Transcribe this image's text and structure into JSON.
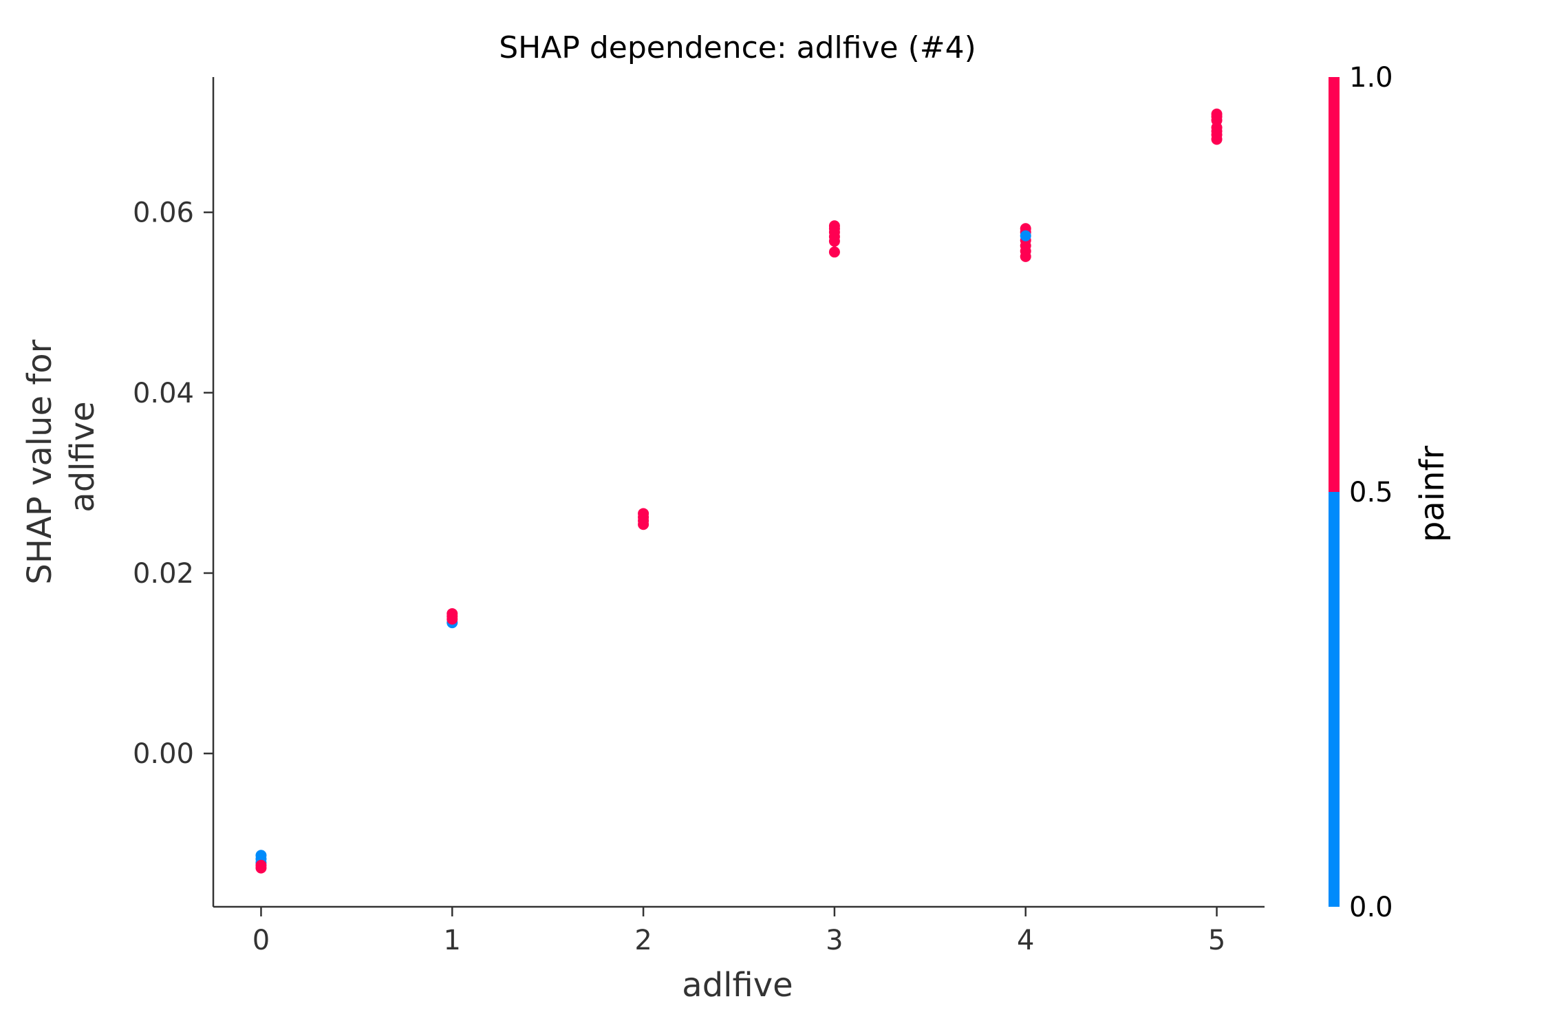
{
  "chart_data": {
    "type": "scatter",
    "title": "SHAP dependence: adlfive (#4)",
    "xlabel": "adlfive",
    "ylabel_lines": [
      "SHAP value for",
      "adlfive"
    ],
    "xlim": [
      -0.25,
      5.25
    ],
    "ylim": [
      -0.017,
      0.075
    ],
    "xticks": [
      0,
      1,
      2,
      3,
      4,
      5
    ],
    "xtick_labels": [
      "0",
      "1",
      "2",
      "3",
      "4",
      "5"
    ],
    "yticks": [
      0.0,
      0.02,
      0.04,
      0.06
    ],
    "ytick_labels": [
      "0.00",
      "0.02",
      "0.04",
      "0.06"
    ],
    "grid": false,
    "points": [
      {
        "x": 0,
        "y": -0.0113,
        "c": 0
      },
      {
        "x": 0,
        "y": -0.0117,
        "c": 0
      },
      {
        "x": 0,
        "y": -0.0121,
        "c": 0
      },
      {
        "x": 0,
        "y": -0.0124,
        "c": 1
      },
      {
        "x": 0,
        "y": -0.0127,
        "c": 1
      },
      {
        "x": 1,
        "y": 0.0145,
        "c": 0
      },
      {
        "x": 1,
        "y": 0.0149,
        "c": 1
      },
      {
        "x": 1,
        "y": 0.0152,
        "c": 1
      },
      {
        "x": 1,
        "y": 0.0155,
        "c": 1
      },
      {
        "x": 2,
        "y": 0.0254,
        "c": 1
      },
      {
        "x": 2,
        "y": 0.0258,
        "c": 1
      },
      {
        "x": 2,
        "y": 0.0262,
        "c": 1
      },
      {
        "x": 2,
        "y": 0.0266,
        "c": 1
      },
      {
        "x": 3,
        "y": 0.0556,
        "c": 1
      },
      {
        "x": 3,
        "y": 0.0568,
        "c": 1
      },
      {
        "x": 3,
        "y": 0.0573,
        "c": 1
      },
      {
        "x": 3,
        "y": 0.0578,
        "c": 1
      },
      {
        "x": 3,
        "y": 0.0582,
        "c": 1
      },
      {
        "x": 3,
        "y": 0.0585,
        "c": 1
      },
      {
        "x": 4,
        "y": 0.0551,
        "c": 1
      },
      {
        "x": 4,
        "y": 0.0557,
        "c": 1
      },
      {
        "x": 4,
        "y": 0.0563,
        "c": 1
      },
      {
        "x": 4,
        "y": 0.0569,
        "c": 1
      },
      {
        "x": 4,
        "y": 0.0578,
        "c": 1
      },
      {
        "x": 4,
        "y": 0.0582,
        "c": 1
      },
      {
        "x": 4,
        "y": 0.0574,
        "c": 0
      },
      {
        "x": 5,
        "y": 0.0681,
        "c": 1
      },
      {
        "x": 5,
        "y": 0.0686,
        "c": 1
      },
      {
        "x": 5,
        "y": 0.069,
        "c": 1
      },
      {
        "x": 5,
        "y": 0.0694,
        "c": 1
      },
      {
        "x": 5,
        "y": 0.0702,
        "c": 1
      },
      {
        "x": 5,
        "y": 0.0706,
        "c": 1
      },
      {
        "x": 5,
        "y": 0.0709,
        "c": 1
      }
    ],
    "colorbar": {
      "label": "painfr",
      "ticks": [
        0.0,
        0.5,
        1.0
      ],
      "tick_labels": [
        "0.0",
        "0.5",
        "1.0"
      ],
      "low_color": "#008bfb",
      "high_color": "#ff0052"
    },
    "colors": {
      "low": "#008bfb",
      "high": "#ff0052",
      "axis": "#333333"
    }
  }
}
